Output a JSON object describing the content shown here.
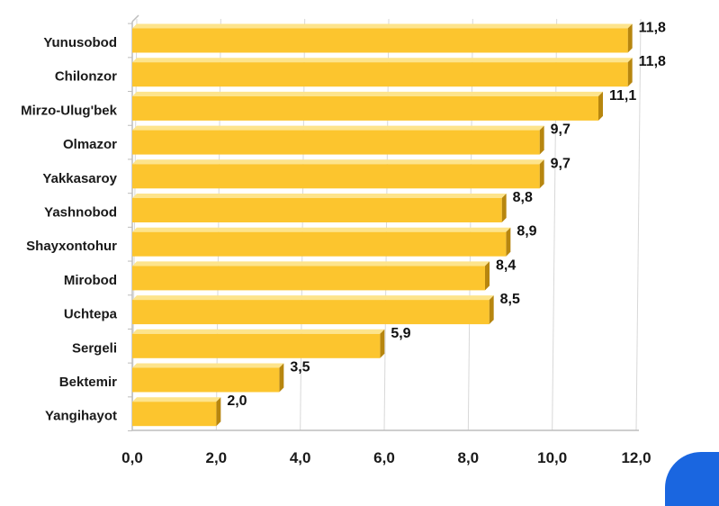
{
  "chart_data": {
    "type": "bar",
    "orientation": "horizontal",
    "categories": [
      "Yunusobod",
      "Chilonzor",
      "Mirzo-Ulug'bek",
      "Olmazor",
      "Yakkasaroy",
      "Yashnobod",
      "Shayxontohur",
      "Mirobod",
      "Uchtepa",
      "Sergeli",
      "Bektemir",
      "Yangihayot"
    ],
    "values": [
      11.8,
      11.8,
      11.1,
      9.7,
      9.7,
      8.8,
      8.9,
      8.4,
      8.5,
      5.9,
      3.5,
      2.0
    ],
    "value_labels": [
      "11,8",
      "11,8",
      "11,1",
      "9,7",
      "9,7",
      "8,8",
      "8,9",
      "8,4",
      "8,5",
      "5,9",
      "3,5",
      "2,0"
    ],
    "xlim": [
      0,
      12
    ],
    "x_ticks": [
      0,
      2,
      4,
      6,
      8,
      10,
      12
    ],
    "x_tick_labels": [
      "0,0",
      "2,0",
      "4,0",
      "6,0",
      "8,0",
      "10,0",
      "12,0"
    ],
    "grid": "vertical",
    "legend": "none",
    "title": "",
    "xlabel": "",
    "ylabel": ""
  },
  "colors": {
    "bar_face": "#fcc52e",
    "bar_top": "#fde48c",
    "bar_side": "#b7860f",
    "grid": "#d8d8d8",
    "axis": "#bdbdbd",
    "corner_accent": "#1a66e0"
  }
}
